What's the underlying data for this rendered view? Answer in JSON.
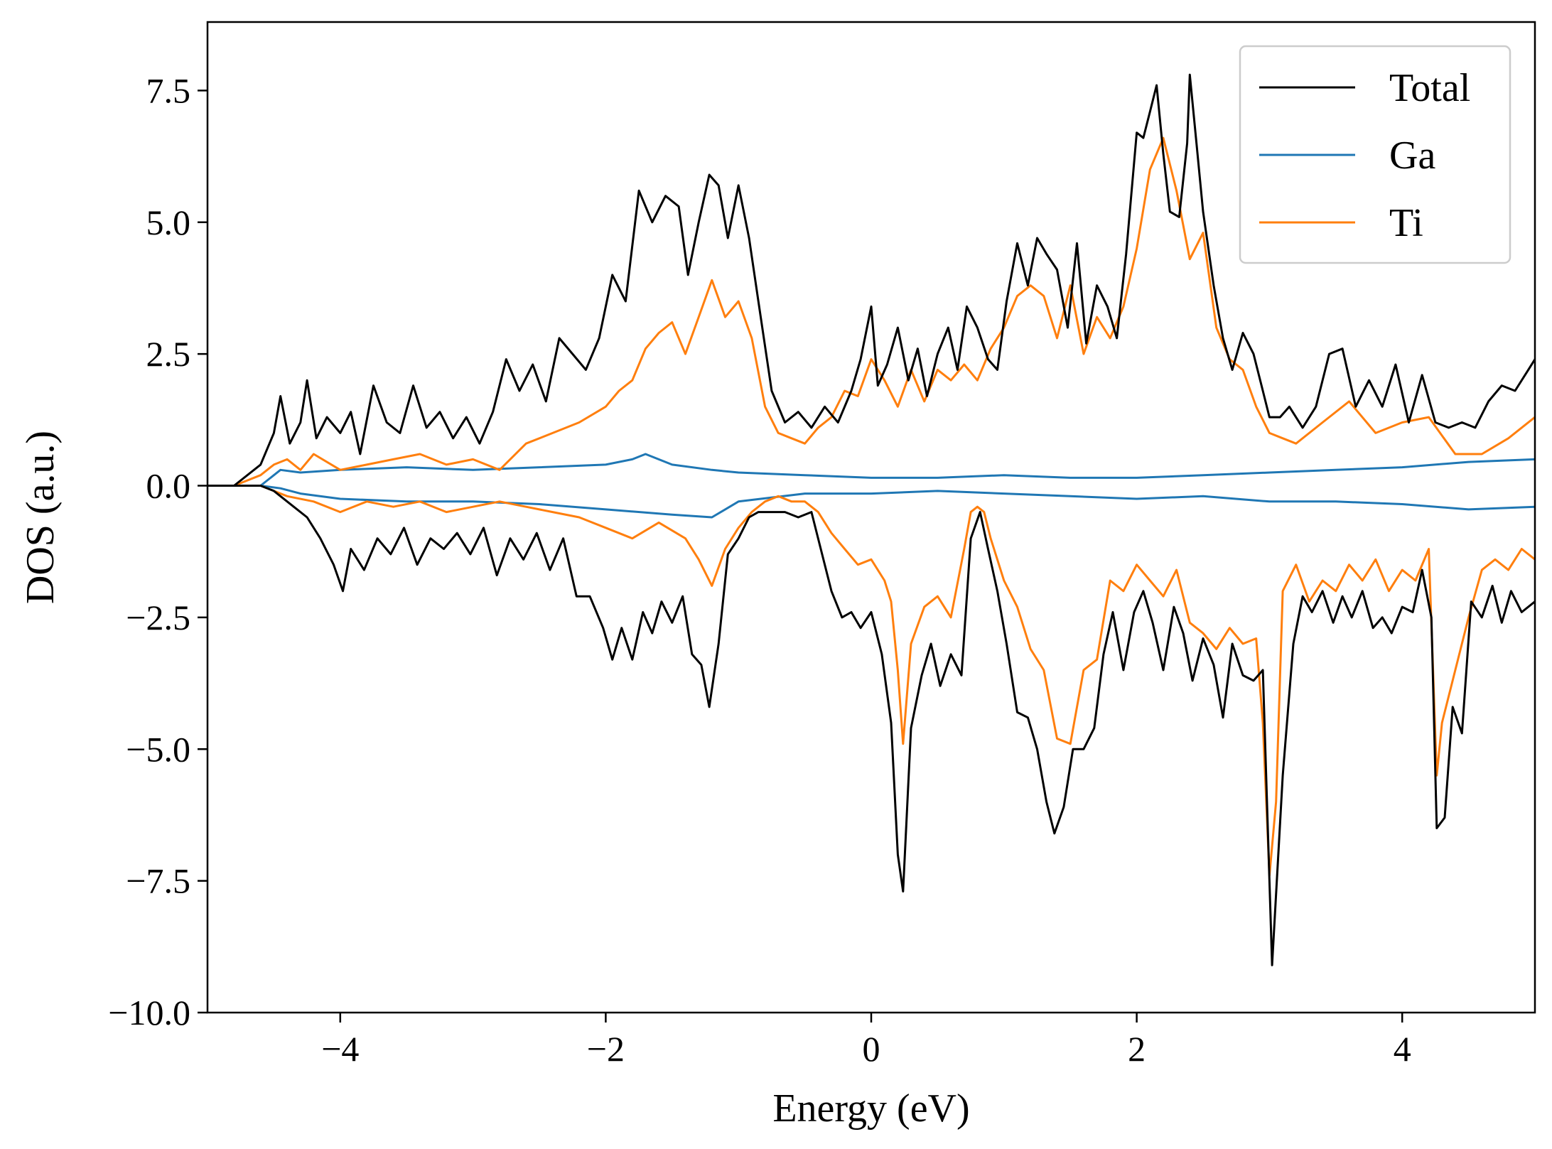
{
  "chart_data": {
    "type": "line",
    "title": "",
    "xlabel": "Energy (eV)",
    "ylabel": "DOS (a.u.)",
    "xlim": [
      -5,
      5
    ],
    "ylim": [
      -10,
      8.8
    ],
    "xticks": [
      -4,
      -2,
      0,
      2,
      4
    ],
    "xtick_labels": [
      "−4",
      "−2",
      "0",
      "2",
      "4"
    ],
    "yticks": [
      7.5,
      5.0,
      2.5,
      0.0,
      -2.5,
      -5.0,
      -7.5,
      -10.0
    ],
    "ytick_labels": [
      "7.5",
      "5.0",
      "2.5",
      "0.0",
      "−2.5",
      "−5.0",
      "−7.5",
      "−10.0"
    ],
    "grid": false,
    "legend": {
      "position": "top-right"
    },
    "series": [
      {
        "name": "Total",
        "color": "#000000",
        "up": {
          "x": [
            -5,
            -4.8,
            -4.6,
            -4.5,
            -4.45,
            -4.38,
            -4.3,
            -4.25,
            -4.18,
            -4.1,
            -4.0,
            -3.92,
            -3.85,
            -3.75,
            -3.65,
            -3.55,
            -3.45,
            -3.35,
            -3.25,
            -3.15,
            -3.05,
            -2.95,
            -2.85,
            -2.75,
            -2.65,
            -2.55,
            -2.45,
            -2.35,
            -2.25,
            -2.15,
            -2.05,
            -1.95,
            -1.85,
            -1.75,
            -1.65,
            -1.55,
            -1.45,
            -1.38,
            -1.3,
            -1.22,
            -1.15,
            -1.08,
            -1.0,
            -0.92,
            -0.85,
            -0.75,
            -0.65,
            -0.55,
            -0.45,
            -0.35,
            -0.25,
            -0.15,
            -0.08,
            0.0,
            0.05,
            0.12,
            0.2,
            0.28,
            0.35,
            0.42,
            0.5,
            0.58,
            0.65,
            0.72,
            0.8,
            0.88,
            0.95,
            1.02,
            1.1,
            1.18,
            1.25,
            1.32,
            1.4,
            1.48,
            1.55,
            1.62,
            1.7,
            1.78,
            1.85,
            1.92,
            2.0,
            2.05,
            2.1,
            2.15,
            2.2,
            2.25,
            2.32,
            2.38,
            2.4,
            2.45,
            2.5,
            2.58,
            2.65,
            2.72,
            2.8,
            2.88,
            2.95,
            3.0,
            3.08,
            3.15,
            3.25,
            3.35,
            3.45,
            3.55,
            3.65,
            3.75,
            3.85,
            3.95,
            4.05,
            4.15,
            4.25,
            4.35,
            4.45,
            4.55,
            4.65,
            4.75,
            4.85,
            4.95,
            5.0
          ],
          "y": [
            0.0,
            0.0,
            0.4,
            1.0,
            1.7,
            0.8,
            1.2,
            2.0,
            0.9,
            1.3,
            1.0,
            1.4,
            0.6,
            1.9,
            1.2,
            1.0,
            1.9,
            1.1,
            1.4,
            0.9,
            1.3,
            0.8,
            1.4,
            2.4,
            1.8,
            2.3,
            1.6,
            2.8,
            2.5,
            2.2,
            2.8,
            4.0,
            3.5,
            5.6,
            5.0,
            5.5,
            5.3,
            4.0,
            5.0,
            5.9,
            5.7,
            4.7,
            5.7,
            4.7,
            3.5,
            1.8,
            1.2,
            1.4,
            1.1,
            1.5,
            1.2,
            1.8,
            2.4,
            3.4,
            1.9,
            2.3,
            3.0,
            2.0,
            2.6,
            1.7,
            2.5,
            3.0,
            2.2,
            3.4,
            3.0,
            2.4,
            2.2,
            3.5,
            4.6,
            3.8,
            4.7,
            4.4,
            4.1,
            3.0,
            4.6,
            2.7,
            3.8,
            3.4,
            2.8,
            4.4,
            6.7,
            6.6,
            7.1,
            7.6,
            6.3,
            5.2,
            5.1,
            6.5,
            7.8,
            6.5,
            5.2,
            3.8,
            2.8,
            2.2,
            2.9,
            2.5,
            1.8,
            1.3,
            1.3,
            1.5,
            1.1,
            1.5,
            2.5,
            2.6,
            1.5,
            2.0,
            1.5,
            2.3,
            1.2,
            2.1,
            1.2,
            1.1,
            1.2,
            1.1,
            1.6,
            1.9,
            1.8,
            2.2,
            2.4
          ],
          "note": ""
        },
        "down": {
          "x": [
            -5,
            -4.6,
            -4.5,
            -4.35,
            -4.25,
            -4.15,
            -4.05,
            -3.98,
            -3.92,
            -3.82,
            -3.72,
            -3.62,
            -3.52,
            -3.42,
            -3.32,
            -3.22,
            -3.12,
            -3.02,
            -2.92,
            -2.82,
            -2.72,
            -2.62,
            -2.52,
            -2.42,
            -2.32,
            -2.22,
            -2.12,
            -2.02,
            -1.95,
            -1.88,
            -1.8,
            -1.72,
            -1.65,
            -1.58,
            -1.5,
            -1.42,
            -1.35,
            -1.28,
            -1.22,
            -1.15,
            -1.08,
            -1.0,
            -0.92,
            -0.85,
            -0.75,
            -0.65,
            -0.55,
            -0.45,
            -0.38,
            -0.3,
            -0.22,
            -0.15,
            -0.08,
            0.0,
            0.08,
            0.15,
            0.2,
            0.24,
            0.3,
            0.38,
            0.45,
            0.52,
            0.6,
            0.68,
            0.75,
            0.82,
            0.88,
            0.95,
            1.02,
            1.1,
            1.18,
            1.25,
            1.32,
            1.38,
            1.45,
            1.52,
            1.6,
            1.68,
            1.75,
            1.82,
            1.9,
            1.98,
            2.05,
            2.12,
            2.2,
            2.28,
            2.35,
            2.42,
            2.5,
            2.58,
            2.65,
            2.72,
            2.8,
            2.88,
            2.95,
            3.02,
            3.1,
            3.18,
            3.25,
            3.32,
            3.4,
            3.48,
            3.55,
            3.62,
            3.7,
            3.78,
            3.85,
            3.92,
            4.0,
            4.08,
            4.15,
            4.22,
            4.26,
            4.32,
            4.38,
            4.45,
            4.52,
            4.6,
            4.68,
            4.75,
            4.82,
            4.9,
            5.0
          ],
          "y": [
            0.0,
            0.0,
            -0.1,
            -0.4,
            -0.6,
            -1.0,
            -1.5,
            -2.0,
            -1.2,
            -1.6,
            -1.0,
            -1.3,
            -0.8,
            -1.5,
            -1.0,
            -1.2,
            -0.9,
            -1.3,
            -0.8,
            -1.7,
            -1.0,
            -1.4,
            -0.9,
            -1.6,
            -1.0,
            -2.1,
            -2.1,
            -2.7,
            -3.3,
            -2.7,
            -3.3,
            -2.4,
            -2.8,
            -2.2,
            -2.6,
            -2.1,
            -3.2,
            -3.4,
            -4.2,
            -3.0,
            -1.3,
            -1.0,
            -0.6,
            -0.5,
            -0.5,
            -0.5,
            -0.6,
            -0.5,
            -1.2,
            -2.0,
            -2.5,
            -2.4,
            -2.7,
            -2.4,
            -3.2,
            -4.5,
            -7.0,
            -7.7,
            -4.6,
            -3.6,
            -3.0,
            -3.8,
            -3.2,
            -3.6,
            -1.0,
            -0.5,
            -1.2,
            -2.0,
            -3.0,
            -4.3,
            -4.4,
            -5.0,
            -6.0,
            -6.6,
            -6.1,
            -5.0,
            -5.0,
            -4.6,
            -3.2,
            -2.4,
            -3.5,
            -2.4,
            -2.0,
            -2.6,
            -3.5,
            -2.3,
            -2.8,
            -3.7,
            -2.9,
            -3.4,
            -4.4,
            -3.0,
            -3.6,
            -3.7,
            -3.5,
            -9.1,
            -5.5,
            -3.0,
            -2.1,
            -2.4,
            -2.0,
            -2.6,
            -2.1,
            -2.5,
            -2.0,
            -2.7,
            -2.5,
            -2.8,
            -2.3,
            -2.4,
            -1.6,
            -2.5,
            -6.5,
            -6.3,
            -4.2,
            -4.7,
            -2.2,
            -2.5,
            -1.9,
            -2.6,
            -2.0,
            -2.4,
            -2.2
          ],
          "note": ""
        }
      },
      {
        "name": "Ga",
        "color": "#1f77b4",
        "up": {
          "x": [
            -5,
            -4.6,
            -4.45,
            -4.3,
            -4.0,
            -3.5,
            -3.0,
            -2.5,
            -2.0,
            -1.8,
            -1.7,
            -1.5,
            -1.2,
            -1.0,
            -0.5,
            0.0,
            0.5,
            1.0,
            1.5,
            2.0,
            2.5,
            3.0,
            3.5,
            4.0,
            4.5,
            5.0
          ],
          "y": [
            0.0,
            0.0,
            0.3,
            0.25,
            0.3,
            0.35,
            0.3,
            0.35,
            0.4,
            0.5,
            0.6,
            0.4,
            0.3,
            0.25,
            0.2,
            0.15,
            0.15,
            0.2,
            0.15,
            0.15,
            0.2,
            0.25,
            0.3,
            0.35,
            0.45,
            0.5
          ],
          "note": ""
        },
        "down": {
          "x": [
            -5,
            -4.6,
            -4.45,
            -4.3,
            -4.0,
            -3.5,
            -3.0,
            -2.5,
            -2.0,
            -1.5,
            -1.2,
            -1.0,
            -0.5,
            0.0,
            0.5,
            1.0,
            1.5,
            2.0,
            2.5,
            3.0,
            3.5,
            4.0,
            4.5,
            5.0
          ],
          "y": [
            0.0,
            0.0,
            -0.05,
            -0.15,
            -0.25,
            -0.3,
            -0.3,
            -0.35,
            -0.45,
            -0.55,
            -0.6,
            -0.3,
            -0.15,
            -0.15,
            -0.1,
            -0.15,
            -0.2,
            -0.25,
            -0.2,
            -0.3,
            -0.3,
            -0.35,
            -0.45,
            -0.4
          ],
          "note": ""
        }
      },
      {
        "name": "Ti",
        "color": "#ff7f0e",
        "up": {
          "x": [
            -5,
            -4.8,
            -4.6,
            -4.5,
            -4.4,
            -4.3,
            -4.2,
            -4.0,
            -3.8,
            -3.6,
            -3.4,
            -3.2,
            -3.0,
            -2.8,
            -2.6,
            -2.4,
            -2.2,
            -2.0,
            -1.9,
            -1.8,
            -1.7,
            -1.6,
            -1.5,
            -1.4,
            -1.3,
            -1.2,
            -1.1,
            -1.0,
            -0.9,
            -0.8,
            -0.7,
            -0.6,
            -0.5,
            -0.4,
            -0.3,
            -0.2,
            -0.1,
            0.0,
            0.1,
            0.2,
            0.3,
            0.4,
            0.5,
            0.6,
            0.7,
            0.8,
            0.9,
            1.0,
            1.1,
            1.2,
            1.3,
            1.4,
            1.5,
            1.6,
            1.7,
            1.8,
            1.9,
            2.0,
            2.1,
            2.2,
            2.3,
            2.4,
            2.5,
            2.6,
            2.7,
            2.8,
            2.9,
            3.0,
            3.1,
            3.2,
            3.4,
            3.6,
            3.8,
            4.0,
            4.2,
            4.4,
            4.6,
            4.8,
            5.0
          ],
          "y": [
            0.0,
            0.0,
            0.2,
            0.4,
            0.5,
            0.3,
            0.6,
            0.3,
            0.4,
            0.5,
            0.6,
            0.4,
            0.5,
            0.3,
            0.8,
            1.0,
            1.2,
            1.5,
            1.8,
            2.0,
            2.6,
            2.9,
            3.1,
            2.5,
            3.2,
            3.9,
            3.2,
            3.5,
            2.8,
            1.5,
            1.0,
            0.9,
            0.8,
            1.1,
            1.3,
            1.8,
            1.7,
            2.4,
            2.0,
            1.5,
            2.2,
            1.6,
            2.2,
            2.0,
            2.3,
            2.0,
            2.6,
            3.0,
            3.6,
            3.8,
            3.6,
            2.8,
            3.8,
            2.5,
            3.2,
            2.8,
            3.4,
            4.5,
            6.0,
            6.6,
            5.6,
            4.3,
            4.8,
            3.0,
            2.4,
            2.2,
            1.5,
            1.0,
            0.9,
            0.8,
            1.2,
            1.6,
            1.0,
            1.2,
            1.3,
            0.6,
            0.6,
            0.9,
            1.3
          ],
          "note": ""
        },
        "down": {
          "x": [
            -5,
            -4.6,
            -4.4,
            -4.2,
            -4.0,
            -3.8,
            -3.6,
            -3.4,
            -3.2,
            -3.0,
            -2.8,
            -2.6,
            -2.4,
            -2.2,
            -2.0,
            -1.8,
            -1.6,
            -1.4,
            -1.3,
            -1.2,
            -1.1,
            -1.0,
            -0.9,
            -0.8,
            -0.7,
            -0.6,
            -0.5,
            -0.4,
            -0.3,
            -0.2,
            -0.1,
            0.0,
            0.1,
            0.15,
            0.2,
            0.24,
            0.3,
            0.4,
            0.5,
            0.6,
            0.7,
            0.75,
            0.8,
            0.85,
            0.9,
            1.0,
            1.1,
            1.2,
            1.3,
            1.4,
            1.5,
            1.6,
            1.7,
            1.8,
            1.9,
            2.0,
            2.1,
            2.2,
            2.3,
            2.4,
            2.5,
            2.6,
            2.7,
            2.8,
            2.9,
            2.95,
            3.0,
            3.05,
            3.1,
            3.2,
            3.3,
            3.4,
            3.5,
            3.6,
            3.7,
            3.8,
            3.9,
            4.0,
            4.1,
            4.2,
            4.26,
            4.3,
            4.4,
            4.5,
            4.6,
            4.7,
            4.8,
            4.9,
            5.0
          ],
          "y": [
            0.0,
            0.0,
            -0.2,
            -0.3,
            -0.5,
            -0.3,
            -0.4,
            -0.3,
            -0.5,
            -0.4,
            -0.3,
            -0.4,
            -0.5,
            -0.6,
            -0.8,
            -1.0,
            -0.7,
            -1.0,
            -1.4,
            -1.9,
            -1.2,
            -0.8,
            -0.5,
            -0.3,
            -0.2,
            -0.3,
            -0.3,
            -0.5,
            -0.9,
            -1.2,
            -1.5,
            -1.4,
            -1.8,
            -2.2,
            -3.5,
            -4.9,
            -3.0,
            -2.3,
            -2.1,
            -2.5,
            -1.2,
            -0.5,
            -0.4,
            -0.5,
            -1.0,
            -1.8,
            -2.3,
            -3.1,
            -3.5,
            -4.8,
            -4.9,
            -3.5,
            -3.3,
            -1.8,
            -2.0,
            -1.5,
            -1.8,
            -2.1,
            -1.6,
            -2.6,
            -2.8,
            -3.1,
            -2.7,
            -3.0,
            -2.9,
            -4.5,
            -7.4,
            -6.0,
            -2.0,
            -1.5,
            -2.2,
            -1.8,
            -2.0,
            -1.5,
            -1.8,
            -1.4,
            -2.0,
            -1.6,
            -1.8,
            -1.2,
            -5.5,
            -4.5,
            -3.5,
            -2.5,
            -1.6,
            -1.4,
            -1.6,
            -1.2,
            -1.4
          ],
          "note": ""
        }
      }
    ]
  }
}
